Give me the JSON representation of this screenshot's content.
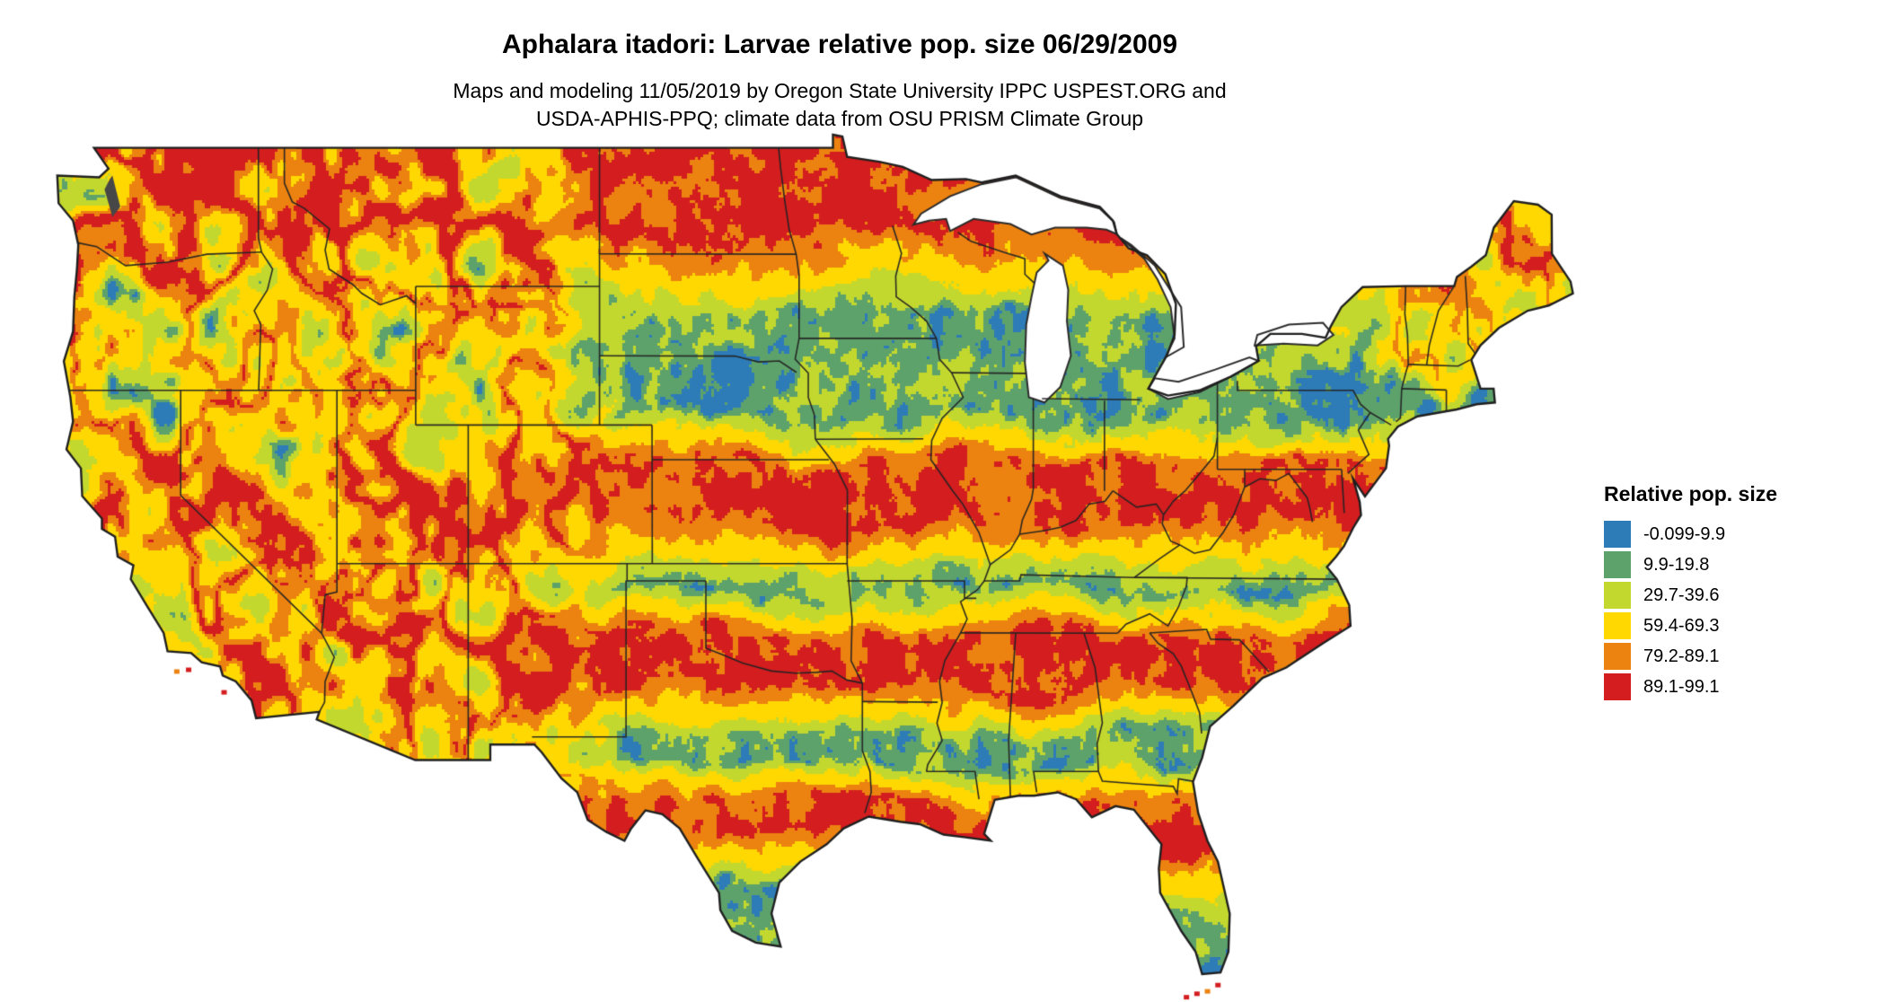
{
  "title": "Aphalara itadori: Larvae relative pop. size 06/29/2009",
  "subtitle_line1": "Maps and modeling 11/05/2019 by Oregon State University IPPC USPEST.ORG and",
  "subtitle_line2": "USDA-APHIS-PPQ; climate data from OSU PRISM Climate Group",
  "legend": {
    "title": "Relative pop. size",
    "items": [
      {
        "label": "-0.099-9.9",
        "color": "#2d7cb8"
      },
      {
        "label": "9.9-19.8",
        "color": "#5ea26b"
      },
      {
        "label": "29.7-39.6",
        "color": "#c3d82e"
      },
      {
        "label": "59.4-69.3",
        "color": "#fed800"
      },
      {
        "label": "79.2-89.1",
        "color": "#ec8210"
      },
      {
        "label": "89.1-99.1",
        "color": "#d31d1f"
      }
    ]
  },
  "map": {
    "description": "Continental United States raster map of larvae relative population size",
    "border_color": "#1f1f1f",
    "water_color": "#ffffff"
  }
}
